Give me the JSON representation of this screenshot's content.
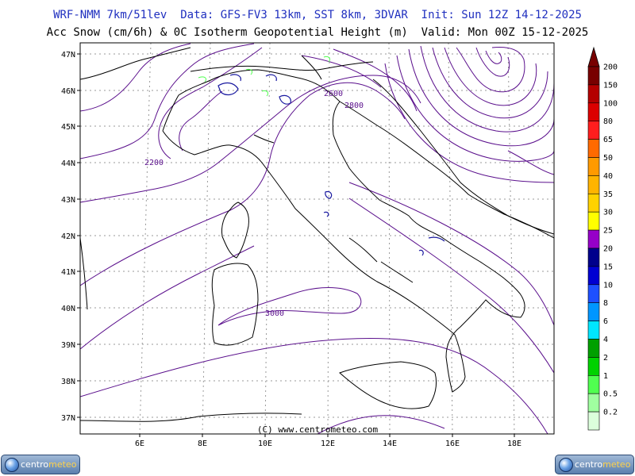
{
  "header": {
    "line1": "WRF-NMM 7km/51lev  Data: GFS-FV3 13km, SST 8km, 3DVAR  Init: Sun 12Z 14-12-2025",
    "line2": "Acc Snow (cm/6h) & 0C Isotherm Geopotential Height (m)  Valid: Mon 00Z 15-12-2025"
  },
  "map": {
    "lat_labels": [
      "47N",
      "46N",
      "45N",
      "44N",
      "43N",
      "42N",
      "41N",
      "40N",
      "39N",
      "38N",
      "37N"
    ],
    "lon_labels": [
      "6E",
      "8E",
      "10E",
      "12E",
      "14E",
      "16E",
      "18E"
    ],
    "contour_labels": [
      "2200",
      "2600",
      "2800",
      "3000"
    ],
    "watermark": "(C) www.centrometeo.com"
  },
  "legend": {
    "values": [
      "200",
      "150",
      "100",
      "80",
      "65",
      "50",
      "40",
      "35",
      "30",
      "25",
      "20",
      "15",
      "10",
      "8",
      "6",
      "4",
      "2",
      "1",
      "0.5",
      "0.2"
    ],
    "colors": [
      "#780000",
      "#b40000",
      "#dc0000",
      "#ff1e1e",
      "#ff6a00",
      "#ff9a00",
      "#ffb400",
      "#ffd200",
      "#ffff00",
      "#9600c8",
      "#00008c",
      "#0000d2",
      "#1e50ff",
      "#0096ff",
      "#00e6ff",
      "#00a000",
      "#00d200",
      "#50ff50",
      "#a0ffa0",
      "#dcffdc"
    ]
  },
  "colors": {
    "contour": "#5a0f8c",
    "snow": "#1a1aa0",
    "coast": "#000000",
    "grid": "#9a9a9a"
  },
  "logos": {
    "left": {
      "text_a": "centro",
      "text_b": "meteo",
      "icon": "globe-icon"
    },
    "right": {
      "text_a": "centro",
      "text_b": "meteo",
      "icon": "globe-icon"
    }
  }
}
